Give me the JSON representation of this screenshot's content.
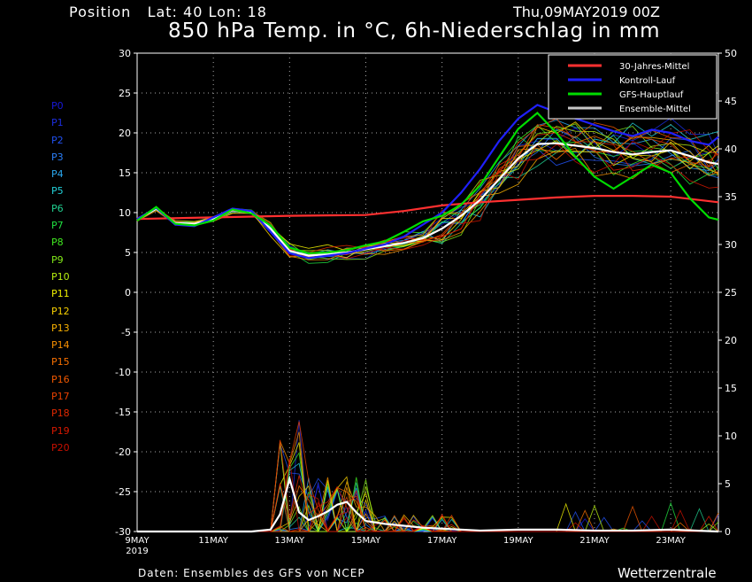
{
  "header": {
    "position_label": "Position",
    "lat_label": "Lat:",
    "lat": "40",
    "lon_label": "Lon:",
    "lon": "18",
    "date": "Thu,09MAY2019 00Z",
    "title": "850 hPa Temp. in °C, 6h-Niederschlag in mm"
  },
  "members": [
    {
      "label": "P0",
      "color": "#1818d8"
    },
    {
      "label": "P1",
      "color": "#1c2ee0"
    },
    {
      "label": "P2",
      "color": "#2050f0"
    },
    {
      "label": "P3",
      "color": "#2a7ef8"
    },
    {
      "label": "P4",
      "color": "#2aa8f0"
    },
    {
      "label": "P5",
      "color": "#22d0d8"
    },
    {
      "label": "P6",
      "color": "#20d090"
    },
    {
      "label": "P7",
      "color": "#20e040"
    },
    {
      "label": "P8",
      "color": "#40e820"
    },
    {
      "label": "P9",
      "color": "#80e818"
    },
    {
      "label": "P10",
      "color": "#b8f010"
    },
    {
      "label": "P11",
      "color": "#f0f000"
    },
    {
      "label": "P12",
      "color": "#f8d000"
    },
    {
      "label": "P13",
      "color": "#f8b000"
    },
    {
      "label": "P14",
      "color": "#f89000"
    },
    {
      "label": "P15",
      "color": "#f87000"
    },
    {
      "label": "P16",
      "color": "#f05800"
    },
    {
      "label": "P17",
      "color": "#e84000"
    },
    {
      "label": "P18",
      "color": "#e02800"
    },
    {
      "label": "P19",
      "color": "#d81800"
    },
    {
      "label": "P20",
      "color": "#c81000"
    }
  ],
  "footer": {
    "credit": "Daten: Ensembles des GFS von NCEP",
    "brand": "Wetterzentrale"
  },
  "chart_data": {
    "type": "line",
    "title": "850 hPa Temp. in °C, 6h-Niederschlag in mm",
    "x_unit": "days since 09MAY 00Z (6h steps)",
    "x_ticks": [
      {
        "day": 0,
        "label": "9MAY",
        "label2": "2019"
      },
      {
        "day": 2,
        "label": "11MAY"
      },
      {
        "day": 4,
        "label": "13MAY"
      },
      {
        "day": 6,
        "label": "15MAY"
      },
      {
        "day": 8,
        "label": "17MAY"
      },
      {
        "day": 10,
        "label": "19MAY"
      },
      {
        "day": 12,
        "label": "21MAY"
      },
      {
        "day": 14,
        "label": "23MAY"
      }
    ],
    "xlim": [
      0,
      15.25
    ],
    "y_left": {
      "label": "850 hPa Temp. (°C)",
      "lim": [
        -30,
        30
      ],
      "ticks": [
        30,
        25,
        20,
        15,
        10,
        5,
        0,
        -5,
        -10,
        -15,
        -20,
        -25,
        -30
      ]
    },
    "y_right": {
      "label": "6h-Niederschlag (mm)",
      "lim": [
        0,
        50
      ],
      "ticks": [
        50,
        45,
        40,
        35,
        30,
        25,
        20,
        15,
        10,
        5,
        0
      ]
    },
    "grid": true,
    "legend": {
      "position": "top-right",
      "entries": [
        {
          "name": "30-Jahres-Mittel",
          "color": "#ff3030"
        },
        {
          "name": "Kontroll-Lauf",
          "color": "#2020ff"
        },
        {
          "name": "GFS-Hauptlauf",
          "color": "#00dd00"
        },
        {
          "name": "Ensemble-Mittel",
          "color": "#c8c8c8"
        }
      ]
    },
    "series": [
      {
        "name": "30-Jahres-Mittel",
        "axis": "temp",
        "color": "#ff3030",
        "x": [
          0,
          2,
          4,
          6,
          7,
          8,
          9,
          10,
          11,
          12,
          13,
          14,
          15.25
        ],
        "y": [
          9.2,
          9.4,
          9.6,
          9.7,
          10.2,
          10.9,
          11.3,
          11.6,
          11.9,
          12.1,
          12.1,
          12.0,
          11.3
        ]
      },
      {
        "name": "Ensemble-Mittel",
        "axis": "temp",
        "color": "#ffffff",
        "x": [
          0,
          0.5,
          1,
          1.5,
          2,
          2.5,
          3,
          3.5,
          4,
          4.5,
          5,
          5.5,
          6,
          6.5,
          7,
          7.5,
          8,
          8.5,
          9,
          9.5,
          10,
          10.5,
          11,
          11.5,
          12,
          12.5,
          13,
          13.5,
          14,
          14.5,
          15,
          15.25
        ],
        "y": [
          9.1,
          10.5,
          8.7,
          8.6,
          9.2,
          10.3,
          10.1,
          8.0,
          5.2,
          4.6,
          4.8,
          5.0,
          5.4,
          5.8,
          6.2,
          6.8,
          8.0,
          9.6,
          11.6,
          14.2,
          16.8,
          18.6,
          18.7,
          18.4,
          18.1,
          17.6,
          17.3,
          17.6,
          17.8,
          17.1,
          16.3,
          16.1
        ]
      },
      {
        "name": "Kontroll-Lauf",
        "axis": "temp",
        "color": "#2020ff",
        "x": [
          0,
          0.5,
          1,
          1.5,
          2,
          2.5,
          3,
          3.5,
          4,
          4.5,
          5,
          5.5,
          6,
          6.5,
          7,
          7.5,
          8,
          8.5,
          9,
          9.5,
          10,
          10.5,
          11,
          11.5,
          12,
          12.5,
          13,
          13.5,
          14,
          14.5,
          15,
          15.25
        ],
        "y": [
          9.2,
          10.6,
          8.5,
          8.3,
          9.4,
          10.5,
          10.2,
          7.6,
          4.9,
          4.3,
          4.6,
          4.9,
          5.5,
          6.0,
          7.0,
          8.5,
          10.0,
          12.5,
          15.5,
          19.0,
          21.8,
          23.5,
          22.6,
          21.8,
          21.0,
          20.2,
          19.6,
          20.4,
          20.0,
          19.0,
          18.5,
          19.5
        ]
      },
      {
        "name": "GFS-Hauptlauf",
        "axis": "temp",
        "color": "#00dd00",
        "x": [
          0,
          0.5,
          1,
          1.5,
          2,
          2.5,
          3,
          3.5,
          4,
          4.5,
          5,
          5.5,
          6,
          6.5,
          7,
          7.5,
          8,
          8.5,
          9,
          9.5,
          10,
          10.5,
          11,
          11.5,
          12,
          12.5,
          13,
          13.5,
          14,
          14.5,
          15,
          15.25
        ],
        "y": [
          9.0,
          10.7,
          8.6,
          8.4,
          9.0,
          10.4,
          9.9,
          8.4,
          5.6,
          4.9,
          5.0,
          5.3,
          5.9,
          6.4,
          7.6,
          8.9,
          9.6,
          11.0,
          13.4,
          17.0,
          20.5,
          22.5,
          20.0,
          17.0,
          14.5,
          13.0,
          14.5,
          16.0,
          15.0,
          11.8,
          9.4,
          9.1
        ]
      },
      {
        "name": "Ensemble-Mittel",
        "axis": "precip",
        "color": "#ffffff",
        "x": [
          0,
          1,
          2,
          3,
          3.5,
          3.75,
          4,
          4.25,
          4.5,
          4.75,
          5,
          5.25,
          5.5,
          5.75,
          6,
          6.5,
          7,
          7.5,
          8,
          9,
          10,
          11,
          12,
          13,
          14,
          15.25
        ],
        "y": [
          0,
          0,
          0,
          0,
          0.2,
          1.8,
          5.5,
          2.0,
          1.2,
          1.6,
          2.1,
          2.8,
          3.1,
          2.0,
          1.1,
          0.8,
          0.6,
          0.4,
          0.3,
          0.1,
          0.2,
          0.2,
          0.1,
          0.1,
          0.2,
          0
        ]
      }
    ]
  }
}
